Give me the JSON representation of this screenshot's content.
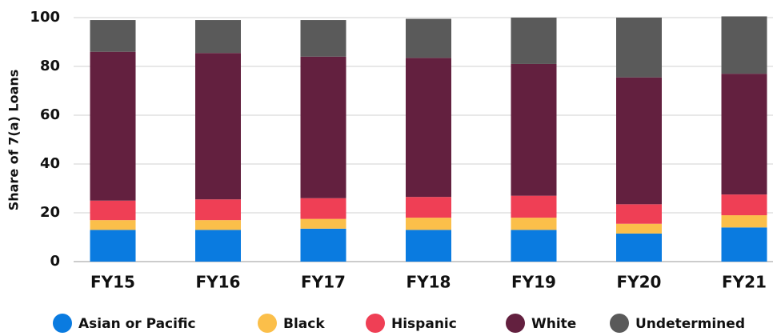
{
  "chart_data": {
    "type": "stacked_bar",
    "y_label": "Share of 7(a) Loans",
    "categories": [
      "FY15",
      "FY16",
      "FY17",
      "FY18",
      "FY19",
      "FY20",
      "FY21"
    ],
    "series": [
      {
        "name": "Asian or Pacific",
        "color": "#0a7be0",
        "values": [
          13,
          13,
          13.5,
          13,
          13,
          11.5,
          14
        ]
      },
      {
        "name": "Black",
        "color": "#fbbf4a",
        "values": [
          4,
          4,
          4,
          5,
          5,
          4,
          5
        ]
      },
      {
        "name": "Hispanic",
        "color": "#ef3f55",
        "values": [
          8,
          8.5,
          8.5,
          8.5,
          9,
          8,
          8.5
        ]
      },
      {
        "name": "White",
        "color": "#63203f",
        "values": [
          61,
          60,
          58,
          57,
          54,
          52,
          49.5
        ]
      },
      {
        "name": "Undetermined",
        "color": "#5a5a5a",
        "values": [
          13,
          13.5,
          15,
          16,
          19,
          24.5,
          23.5
        ]
      }
    ],
    "ylim": [
      0,
      100
    ],
    "yticks": [
      0,
      20,
      40,
      60,
      80,
      100
    ],
    "grid": true,
    "legend": "bottom"
  }
}
